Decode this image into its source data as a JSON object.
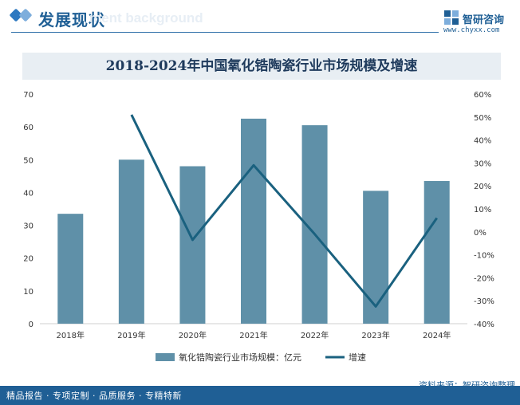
{
  "header": {
    "title": "发展现状",
    "watermark_text": "ment background",
    "brand_name": "智研咨询",
    "brand_url": "www.chyxx.com"
  },
  "chart_data": {
    "type": "bar",
    "title": "2018-2024年中国氧化锆陶瓷行业市场规模及增速",
    "categories": [
      "2018年",
      "2019年",
      "2020年",
      "2021年",
      "2022年",
      "2023年",
      "2024年"
    ],
    "series": [
      {
        "name": "氧化锆陶瓷行业市场规模：亿元",
        "type": "bar",
        "axis": "left",
        "color": "#5f90a8",
        "values": [
          33.5,
          50,
          48,
          62.5,
          60.5,
          40.5,
          43.5
        ]
      },
      {
        "name": "增速",
        "type": "line",
        "axis": "right",
        "color": "#1a617f",
        "values": [
          null,
          51,
          -3.5,
          29,
          -1,
          -32.5,
          6
        ]
      }
    ],
    "y_left": {
      "min": 0,
      "max": 70,
      "ticks": [
        "0",
        "10",
        "20",
        "30",
        "40",
        "50",
        "60",
        "70"
      ]
    },
    "y_right": {
      "min": -40,
      "max": 60,
      "ticks": [
        "-40%",
        "-30%",
        "-20%",
        "-10%",
        "0%",
        "10%",
        "20%",
        "30%",
        "40%",
        "50%",
        "60%"
      ]
    },
    "legend_placement": "bottom-center",
    "grid": false
  },
  "footer": {
    "tagline": "精品报告 · 专项定制 · 品质服务 · 专精特新",
    "source": "资料来源：智研咨询整理"
  },
  "colors": {
    "brand": "#1f5f95",
    "bar": "#5f90a8",
    "line": "#1a617f",
    "title_band": "#e8eef3"
  }
}
